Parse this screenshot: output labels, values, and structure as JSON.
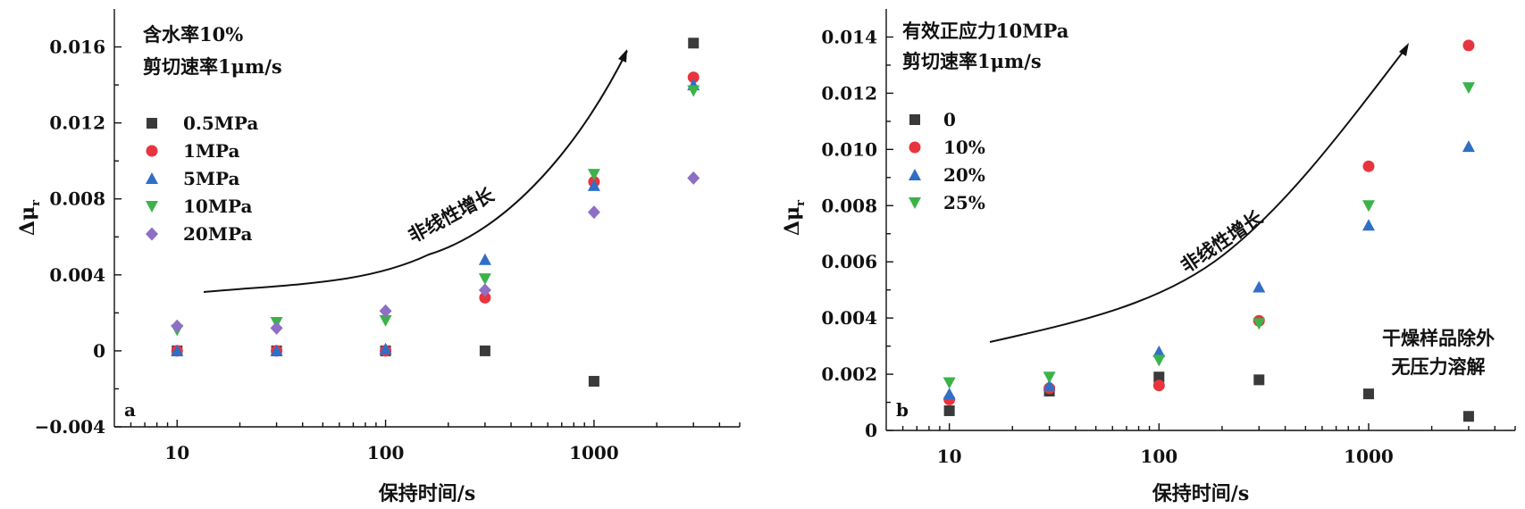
{
  "chart_data": [
    {
      "type": "scatter",
      "panel_label": "a",
      "xlabel": "保持时间/s",
      "ylabel_main": "Δμ",
      "ylabel_sub": "r",
      "x_scale": "log",
      "xlim": [
        5,
        5000
      ],
      "ylim": [
        -0.004,
        0.018
      ],
      "x_ticks": [
        10,
        100,
        1000
      ],
      "x_tick_labels": [
        "10",
        "100",
        "1000"
      ],
      "y_ticks": [
        -0.004,
        0,
        0.004,
        0.008,
        0.012,
        0.016
      ],
      "y_tick_labels": [
        "−0.004",
        "0",
        "0.004",
        "0.008",
        "0.012",
        "0.016"
      ],
      "annotations": [
        "含水率10%",
        "剪切速率1μm/s"
      ],
      "trend_label": "非线性增长",
      "legend_placement": "upper-left",
      "x": [
        10,
        30,
        100,
        300,
        1000,
        3000
      ],
      "series": [
        {
          "name": "0.5MPa",
          "marker": "square",
          "color": "#3a3a3a",
          "values": [
            0,
            0,
            0,
            0,
            -0.0016,
            0.0162
          ]
        },
        {
          "name": "1MPa",
          "marker": "circle",
          "color": "#e8343e",
          "values": [
            0,
            0,
            0,
            0.0028,
            0.0089,
            0.0144
          ]
        },
        {
          "name": "5MPa",
          "marker": "triangle-up",
          "color": "#2f6fc6",
          "values": [
            0,
            0,
            0.0001,
            0.0048,
            0.0087,
            0.014
          ]
        },
        {
          "name": "10MPa",
          "marker": "triangle-down",
          "color": "#3cb34a",
          "values": [
            0.0011,
            0.0015,
            0.0016,
            0.0038,
            0.0093,
            0.0137
          ]
        },
        {
          "name": "20MPa",
          "marker": "diamond",
          "color": "#8e6fc4",
          "values": [
            0.0013,
            0.0012,
            0.0021,
            0.0032,
            0.0073,
            0.0091
          ]
        }
      ]
    },
    {
      "type": "scatter",
      "panel_label": "b",
      "xlabel": "保持时间/s",
      "ylabel_main": "Δμ",
      "ylabel_sub": "r",
      "x_scale": "log",
      "xlim": [
        5,
        5000
      ],
      "ylim": [
        0,
        0.015
      ],
      "x_ticks": [
        10,
        100,
        1000
      ],
      "x_tick_labels": [
        "10",
        "100",
        "1000"
      ],
      "y_ticks": [
        0,
        0.002,
        0.004,
        0.006,
        0.008,
        0.01,
        0.012,
        0.014
      ],
      "y_tick_labels": [
        "0",
        "0.002",
        "0.004",
        "0.006",
        "0.008",
        "0.010",
        "0.012",
        "0.014"
      ],
      "annotations": [
        "有效正应力10MPa",
        "剪切速率1μm/s"
      ],
      "note": [
        "干燥样品除外",
        "无压力溶解"
      ],
      "trend_label": "非线性增长",
      "legend_placement": "upper-left",
      "x": [
        10,
        30,
        100,
        300,
        1000,
        3000
      ],
      "series": [
        {
          "name": "0",
          "marker": "square",
          "color": "#3a3a3a",
          "values": [
            0.0007,
            0.0014,
            0.0019,
            0.0018,
            0.0013,
            0.0005
          ]
        },
        {
          "name": "10%",
          "marker": "circle",
          "color": "#e8343e",
          "values": [
            0.0011,
            0.0015,
            0.0016,
            0.0039,
            0.0094,
            0.0137
          ]
        },
        {
          "name": "20%",
          "marker": "triangle-up",
          "color": "#2f6fc6",
          "values": [
            0.0013,
            0.0016,
            0.0028,
            0.0051,
            0.0073,
            0.0101
          ]
        },
        {
          "name": "25%",
          "marker": "triangle-down",
          "color": "#3cb34a",
          "values": [
            0.0017,
            0.0019,
            0.0025,
            0.0038,
            0.008,
            0.0122
          ]
        }
      ]
    }
  ]
}
